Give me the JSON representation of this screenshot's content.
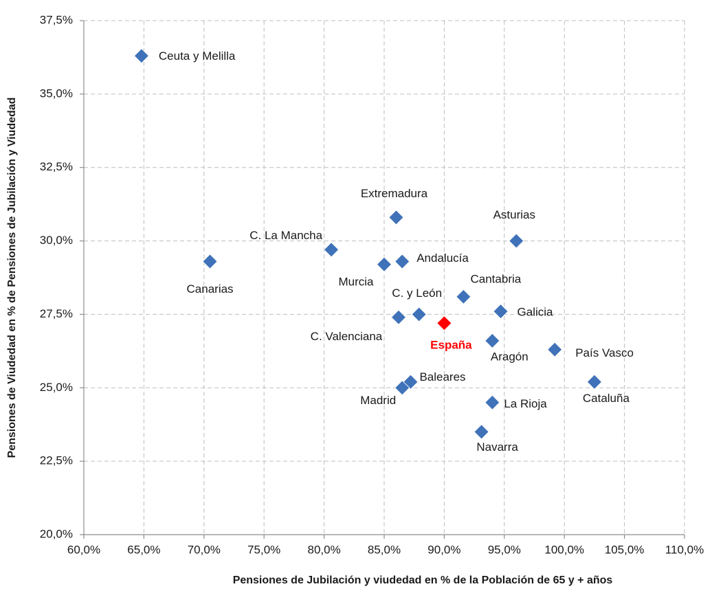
{
  "chart_data": {
    "type": "scatter",
    "x_label": "Pensiones de Jubilación y viudedad en % de la Población de 65 y + años",
    "y_label": "Pensiones de Viudedad en % de Pensiones de Jubilación y Viudedad",
    "xlim": [
      60,
      110
    ],
    "ylim": [
      20,
      37.5
    ],
    "xticks": [
      {
        "value": 60,
        "label": "60,0%"
      },
      {
        "value": 65,
        "label": "65,0%"
      },
      {
        "value": 70,
        "label": "70,0%"
      },
      {
        "value": 75,
        "label": "75,0%"
      },
      {
        "value": 80,
        "label": "80,0%"
      },
      {
        "value": 85,
        "label": "85,0%"
      },
      {
        "value": 90,
        "label": "90,0%"
      },
      {
        "value": 95,
        "label": "95,0%"
      },
      {
        "value": 100,
        "label": "100,0%"
      },
      {
        "value": 105,
        "label": "105,0%"
      },
      {
        "value": 110,
        "label": "110,0%"
      }
    ],
    "yticks": [
      {
        "value": 20,
        "label": "20,0%"
      },
      {
        "value": 22.5,
        "label": "22,5%"
      },
      {
        "value": 25,
        "label": "25,0%"
      },
      {
        "value": 27.5,
        "label": "27,5%"
      },
      {
        "value": 30,
        "label": "30,0%"
      },
      {
        "value": 32.5,
        "label": "32,5%"
      },
      {
        "value": 35,
        "label": "35,0%"
      },
      {
        "value": 37.5,
        "label": "37,5%"
      }
    ],
    "grid": true,
    "series": [
      {
        "color": "#3f72b8",
        "points": [
          {
            "label": "Ceuta y Melilla",
            "x": 64.8,
            "y": 36.3
          },
          {
            "label": "Canarias",
            "x": 70.5,
            "y": 29.3
          },
          {
            "label": "C. La Mancha",
            "x": 80.6,
            "y": 29.7
          },
          {
            "label": "Extremadura",
            "x": 86.0,
            "y": 30.8
          },
          {
            "label": "Asturias",
            "x": 96.0,
            "y": 30.0
          },
          {
            "label": "Murcia",
            "x": 85.0,
            "y": 29.2
          },
          {
            "label": "Andalucía",
            "x": 86.5,
            "y": 29.3
          },
          {
            "label": "Cantabria",
            "x": 91.6,
            "y": 28.1
          },
          {
            "label": "C. y León",
            "x": 87.9,
            "y": 27.5
          },
          {
            "label": "C. Valenciana",
            "x": 86.2,
            "y": 27.4
          },
          {
            "label": "Galicia",
            "x": 94.7,
            "y": 27.6
          },
          {
            "label": "Aragón",
            "x": 94.0,
            "y": 26.6
          },
          {
            "label": "País Vasco",
            "x": 99.2,
            "y": 26.3
          },
          {
            "label": "Cataluña",
            "x": 102.5,
            "y": 25.2
          },
          {
            "label": "Baleares",
            "x": 87.2,
            "y": 25.2
          },
          {
            "label": "Madrid",
            "x": 86.5,
            "y": 25.0
          },
          {
            "label": "La Rioja",
            "x": 94.0,
            "y": 24.5
          },
          {
            "label": "Navarra",
            "x": 93.1,
            "y": 23.5
          }
        ]
      },
      {
        "color": "#ff0000",
        "points": [
          {
            "label": "España",
            "x": 90.0,
            "y": 27.2
          }
        ]
      }
    ]
  }
}
